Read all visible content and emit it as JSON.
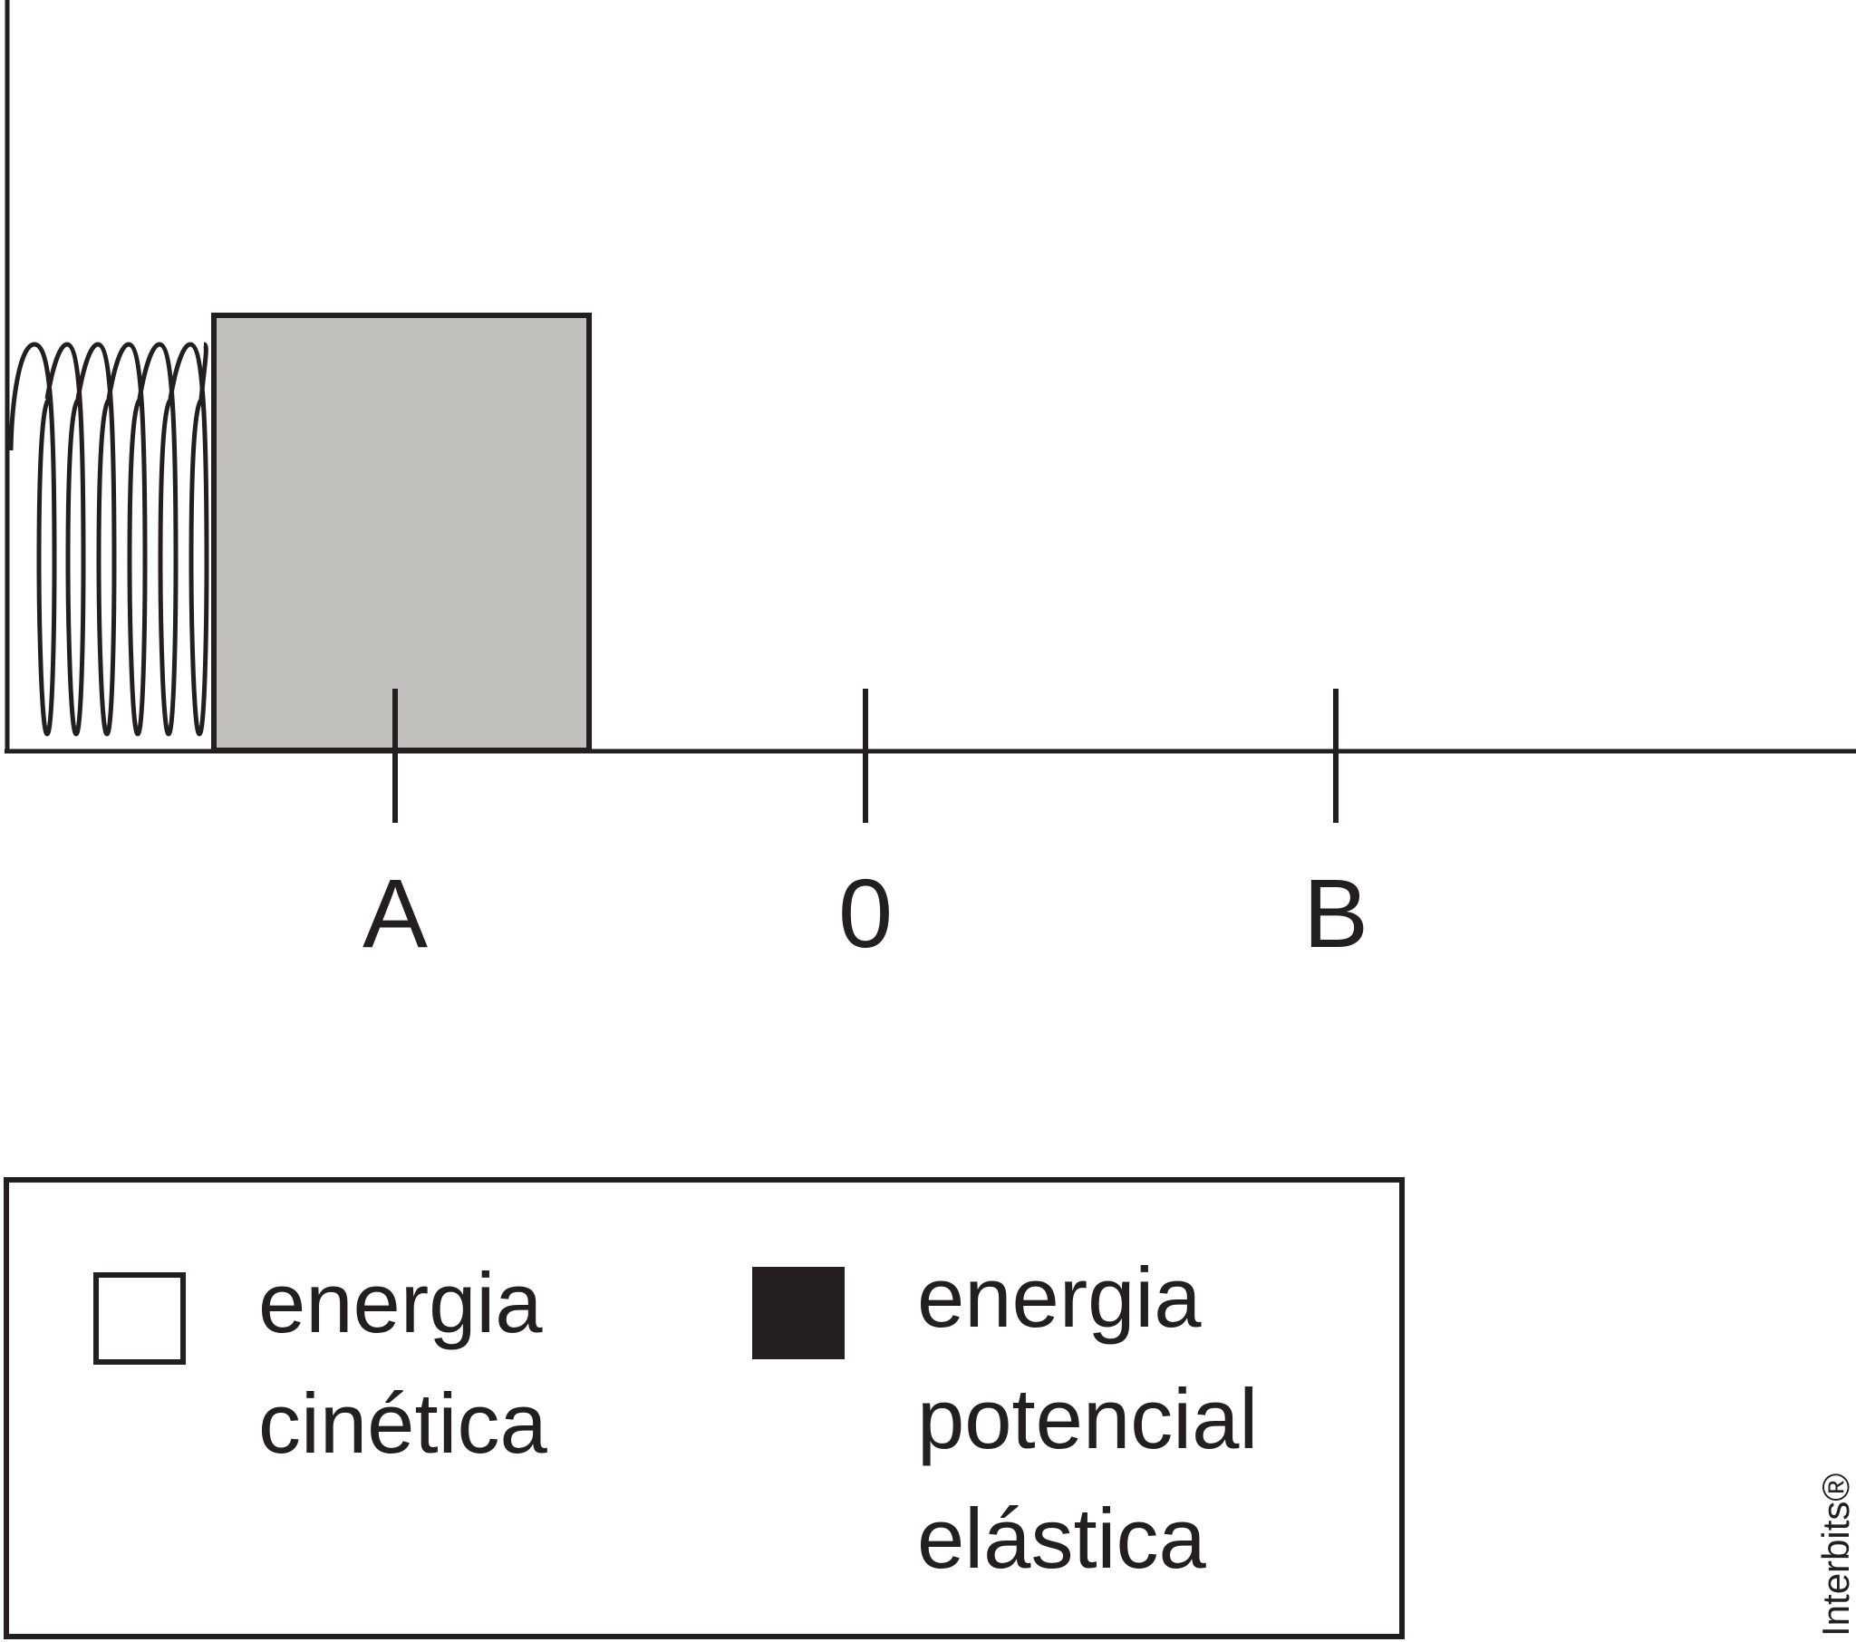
{
  "diagram": {
    "points": [
      {
        "id": "A",
        "label": "A"
      },
      {
        "id": "0",
        "label": "0"
      },
      {
        "id": "B",
        "label": "B"
      }
    ],
    "legend": {
      "items": [
        {
          "swatch": "white",
          "lines": [
            "energia",
            "cinética"
          ]
        },
        {
          "swatch": "black",
          "lines": [
            "energia",
            "potencial",
            "elástica"
          ]
        }
      ]
    },
    "watermark": "Interbits®"
  },
  "colors": {
    "stroke": "#231f20",
    "block_fill": "#c1bfbc",
    "kinetic_swatch": "#ffffff",
    "potential_swatch": "#231f20"
  }
}
